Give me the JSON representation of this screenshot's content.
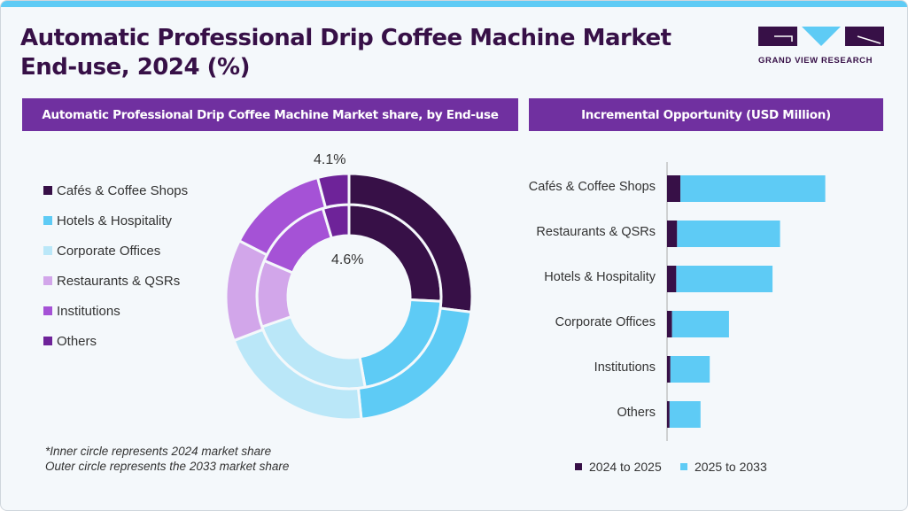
{
  "title_line1": "Automatic Professional Drip Coffee Machine Market",
  "title_line2": "End-use, 2024 (%)",
  "logo_text": "GRAND VIEW RESEARCH",
  "left_header": "Automatic Professional Drip Coffee Machine Market share, by End-use",
  "right_header": "Incremental Opportunity (USD Million)",
  "note_line1": "*Inner circle represents 2024 market share",
  "note_line2": "Outer circle represents the 2033 market share",
  "colors": {
    "accent": "#7030a0",
    "strip": "#5ecbf5"
  },
  "chart_data": [
    {
      "type": "pie",
      "subtype": "double-donut",
      "categories": [
        "Cafés & Coffee Shops",
        "Hotels & Hospitality",
        "Corporate Offices",
        "Restaurants & QSRs",
        "Institutions",
        "Others"
      ],
      "colors": [
        "#371047",
        "#5ecbf5",
        "#bae7f8",
        "#d2a6ea",
        "#a552d6",
        "#6e2399"
      ],
      "legend_order": [
        "Cafés & Coffee Shops",
        "Hotels & Hospitality",
        "Corporate Offices",
        "Restaurants & QSRs",
        "Institutions",
        "Others"
      ],
      "legend_placement": "left",
      "series": [
        {
          "name": "2024",
          "ring": "inner",
          "values": [
            25.8,
            21.4,
            22.5,
            11.7,
            14.0,
            4.6
          ]
        },
        {
          "name": "2033",
          "ring": "outer",
          "values": [
            27.0,
            21.4,
            20.8,
            13.3,
            13.4,
            4.1
          ]
        }
      ],
      "data_labels": {
        "outer_others": "4.1%",
        "inner_others": "4.6%"
      }
    },
    {
      "type": "bar",
      "orientation": "horizontal",
      "stacked": true,
      "title": "Incremental Opportunity (USD Million)",
      "categories": [
        "Cafés & Coffee Shops",
        "Restaurants & QSRs",
        "Hotels & Hospitality",
        "Corporate Offices",
        "Institutions",
        "Others"
      ],
      "series": [
        {
          "name": "2024 to 2025",
          "color": "#371047",
          "values": [
            16,
            12,
            11,
            6,
            4,
            3
          ]
        },
        {
          "name": "2025 to 2033",
          "color": "#5ecbf5",
          "values": [
            173,
            123,
            115,
            68,
            47,
            37
          ]
        }
      ],
      "xlim": [
        0,
        200
      ],
      "grid": false,
      "legend_placement": "bottom"
    }
  ]
}
